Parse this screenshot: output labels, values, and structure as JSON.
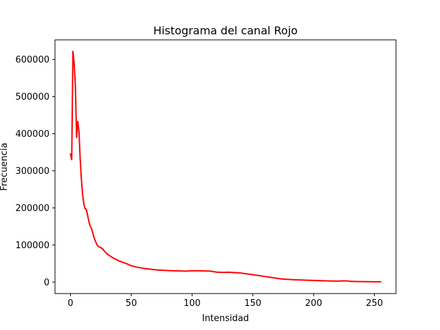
{
  "chart_data": {
    "type": "line",
    "title": "Histograma del canal Rojo",
    "xlabel": "Intensidad",
    "ylabel": "Frecuencia",
    "xlim": [
      -12.75,
      267.75
    ],
    "ylim": [
      -31000,
      653000
    ],
    "xticks": [
      0,
      50,
      100,
      150,
      200,
      250
    ],
    "yticks": [
      0,
      100000,
      200000,
      300000,
      400000,
      500000,
      600000
    ],
    "ytick_labels": [
      "0",
      "100000",
      "200000",
      "300000",
      "400000",
      "500000",
      "600000"
    ],
    "grid": false,
    "series": [
      {
        "color": "#ff0000",
        "x": [
          0,
          1,
          2,
          3,
          4,
          5,
          6,
          7,
          8,
          9,
          10,
          11,
          12,
          13,
          14,
          15,
          16,
          17,
          18,
          19,
          20,
          22,
          24,
          26,
          28,
          30,
          35,
          40,
          45,
          50,
          55,
          60,
          65,
          70,
          75,
          80,
          85,
          90,
          95,
          100,
          105,
          110,
          115,
          120,
          125,
          130,
          135,
          140,
          145,
          150,
          155,
          160,
          165,
          170,
          175,
          180,
          185,
          190,
          195,
          200,
          205,
          210,
          215,
          220,
          225,
          228,
          230,
          235,
          240,
          245,
          250,
          255
        ],
        "y": [
          345000,
          330000,
          622000,
          590000,
          530000,
          390000,
          433000,
          405000,
          330000,
          275000,
          235000,
          210000,
          198000,
          196000,
          182000,
          165000,
          153000,
          146000,
          137000,
          124000,
          114000,
          99000,
          94000,
          91000,
          83000,
          76000,
          65000,
          57000,
          51000,
          44000,
          40000,
          37000,
          35000,
          33000,
          32000,
          31000,
          30500,
          30000,
          29500,
          30500,
          30500,
          30000,
          29500,
          27000,
          26000,
          26500,
          25500,
          24500,
          22000,
          20000,
          17500,
          15000,
          12500,
          10000,
          8000,
          7000,
          6000,
          5500,
          5000,
          4500,
          3800,
          3200,
          2800,
          2500,
          3200,
          3000,
          1800,
          1500,
          1300,
          1000,
          800,
          700
        ]
      }
    ]
  }
}
